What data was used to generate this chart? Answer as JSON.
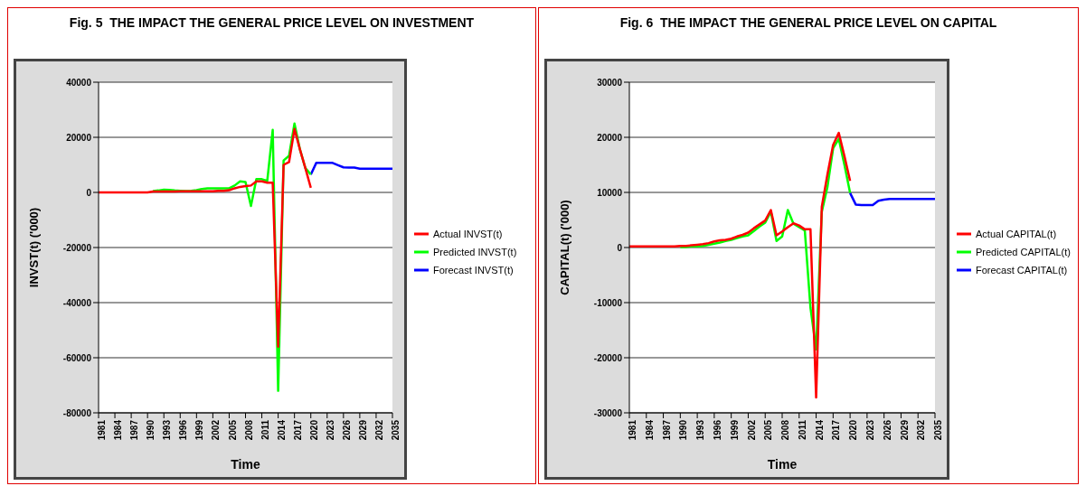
{
  "chart_data": [
    {
      "type": "line",
      "title": "Fig. 5  THE IMPACT THE GENERAL PRICE LEVEL ON INVESTMENT",
      "xlabel": "Time",
      "ylabel": "INVST(t) ('000)",
      "xlim": [
        1981,
        2035
      ],
      "xticks": [
        1981,
        1984,
        1987,
        1990,
        1993,
        1996,
        1999,
        2002,
        2005,
        2008,
        2011,
        2014,
        2017,
        2020,
        2023,
        2026,
        2029,
        2032,
        2035
      ],
      "ylim": [
        -80000,
        40000
      ],
      "yticks": [
        -80000,
        -60000,
        -40000,
        -20000,
        0,
        20000,
        40000
      ],
      "grid": "y",
      "legend": "right",
      "marker": "none",
      "line_style": "solid",
      "series": [
        {
          "name": "Actual INVST(t)",
          "color": "#ff0000",
          "x": [
            1981,
            1982,
            1983,
            1984,
            1985,
            1986,
            1987,
            1988,
            1989,
            1990,
            1991,
            1992,
            1993,
            1994,
            1995,
            1996,
            1997,
            1998,
            1999,
            2000,
            2001,
            2002,
            2003,
            2004,
            2005,
            2006,
            2007,
            2008,
            2009,
            2010,
            2011,
            2012,
            2013,
            2014,
            2015,
            2016,
            2017,
            2018,
            2019,
            2020
          ],
          "values": [
            0,
            0,
            0,
            0,
            0,
            0,
            0,
            0,
            0,
            0,
            300,
            300,
            300,
            300,
            300,
            400,
            400,
            400,
            400,
            400,
            400,
            400,
            600,
            600,
            800,
            1500,
            2000,
            2300,
            2500,
            4000,
            4000,
            3500,
            3500,
            -56000,
            10000,
            11000,
            23000,
            15600,
            8800,
            1700
          ]
        },
        {
          "name": "Predicted INVST(t)",
          "color": "#00ff00",
          "x": [
            1991,
            1992,
            1993,
            1994,
            1995,
            1996,
            1997,
            1998,
            1999,
            2000,
            2001,
            2002,
            2003,
            2004,
            2005,
            2006,
            2007,
            2008,
            2009,
            2010,
            2011,
            2012,
            2013,
            2014,
            2015,
            2016,
            2017,
            2018,
            2019,
            2020
          ],
          "values": [
            500,
            700,
            1000,
            900,
            700,
            600,
            500,
            600,
            800,
            1200,
            1500,
            1500,
            1500,
            1500,
            1500,
            2500,
            4000,
            3800,
            -4900,
            4800,
            4800,
            4200,
            22700,
            -72000,
            11600,
            13300,
            25000,
            15600,
            8800,
            6500
          ]
        },
        {
          "name": "Forecast INVST(t)",
          "color": "#0000ff",
          "x": [
            2020,
            2021,
            2022,
            2023,
            2024,
            2025,
            2026,
            2027,
            2028,
            2029,
            2030,
            2031,
            2032,
            2033,
            2034,
            2035
          ],
          "values": [
            6500,
            10700,
            10700,
            10700,
            10700,
            9900,
            9100,
            9000,
            9000,
            8600,
            8600,
            8600,
            8600,
            8600,
            8600,
            8600
          ]
        }
      ]
    },
    {
      "type": "line",
      "title": "Fig. 6  THE IMPACT THE GENERAL PRICE LEVEL ON CAPITAL",
      "xlabel": "Time",
      "ylabel": "CAPITAL(t) ('000)",
      "xlim": [
        1981,
        2035
      ],
      "xticks": [
        1981,
        1984,
        1987,
        1990,
        1993,
        1996,
        1999,
        2002,
        2005,
        2008,
        2011,
        2014,
        2017,
        2020,
        2023,
        2026,
        2029,
        2032,
        2035
      ],
      "ylim": [
        -30000,
        30000
      ],
      "yticks": [
        -30000,
        -20000,
        -10000,
        0,
        10000,
        20000,
        30000
      ],
      "grid": "y",
      "legend": "right",
      "marker": "none",
      "line_style": "solid",
      "series": [
        {
          "name": "Actual CAPITAL(t)",
          "color": "#ff0000",
          "x": [
            1981,
            1982,
            1983,
            1984,
            1985,
            1986,
            1987,
            1988,
            1989,
            1990,
            1991,
            1992,
            1993,
            1994,
            1995,
            1996,
            1997,
            1998,
            1999,
            2000,
            2001,
            2002,
            2003,
            2004,
            2005,
            2006,
            2007,
            2008,
            2009,
            2010,
            2011,
            2012,
            2013,
            2014,
            2015,
            2016,
            2017,
            2018,
            2019,
            2020
          ],
          "values": [
            200,
            200,
            200,
            200,
            200,
            200,
            200,
            200,
            200,
            300,
            300,
            400,
            500,
            600,
            800,
            1100,
            1300,
            1400,
            1600,
            2000,
            2300,
            2700,
            3500,
            4200,
            4900,
            6800,
            2200,
            2900,
            3700,
            4400,
            4000,
            3300,
            3300,
            -27200,
            7400,
            13300,
            18600,
            20800,
            16600,
            12100
          ]
        },
        {
          "name": "Predicted CAPITAL(t)",
          "color": "#00ff00",
          "x": [
            1990,
            1991,
            1992,
            1993,
            1994,
            1995,
            1996,
            1997,
            1998,
            1999,
            2000,
            2001,
            2002,
            2003,
            2004,
            2005,
            2006,
            2007,
            2008,
            2009,
            2010,
            2011,
            2012,
            2013,
            2014,
            2015,
            2016,
            2017,
            2018,
            2019,
            2020
          ],
          "values": [
            100,
            100,
            200,
            200,
            300,
            500,
            700,
            900,
            1200,
            1400,
            1700,
            2000,
            2200,
            3000,
            3800,
            4500,
            6500,
            1200,
            2000,
            6800,
            4300,
            3700,
            3100,
            -10900,
            -18500,
            6500,
            11000,
            18000,
            19700,
            15000,
            9900
          ]
        },
        {
          "name": "Forecast CAPITAL(t)",
          "color": "#0000ff",
          "x": [
            2020,
            2021,
            2022,
            2023,
            2024,
            2025,
            2026,
            2027,
            2028,
            2029,
            2030,
            2031,
            2032,
            2033,
            2034,
            2035
          ],
          "values": [
            9900,
            7800,
            7700,
            7700,
            7700,
            8500,
            8700,
            8800,
            8800,
            8800,
            8800,
            8800,
            8800,
            8800,
            8800,
            8800
          ]
        }
      ]
    }
  ]
}
